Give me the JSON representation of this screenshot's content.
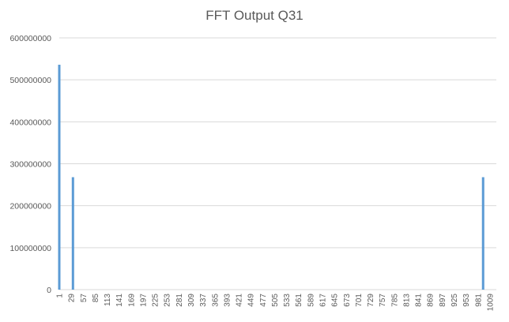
{
  "chart_data": {
    "type": "bar",
    "title": "FFT Output Q31",
    "xlabel": "",
    "ylabel": "",
    "ylim": [
      0,
      600000000
    ],
    "y_ticks": [
      0,
      100000000,
      200000000,
      300000000,
      400000000,
      500000000,
      600000000
    ],
    "x_range": [
      1,
      1024
    ],
    "x_tick_labels": [
      "1",
      "29",
      "57",
      "85",
      "113",
      "141",
      "169",
      "197",
      "225",
      "253",
      "281",
      "309",
      "337",
      "365",
      "393",
      "421",
      "449",
      "477",
      "505",
      "533",
      "561",
      "589",
      "617",
      "645",
      "673",
      "701",
      "729",
      "757",
      "785",
      "813",
      "841",
      "869",
      "897",
      "925",
      "953",
      "981",
      "1009"
    ],
    "grid": true,
    "legend": "none",
    "bar_color": "#5b9bd5",
    "points": [
      {
        "x": 1,
        "y": 536000000
      },
      {
        "x": 33,
        "y": 268000000
      },
      {
        "x": 993,
        "y": 268000000
      }
    ],
    "other_values": 0
  }
}
